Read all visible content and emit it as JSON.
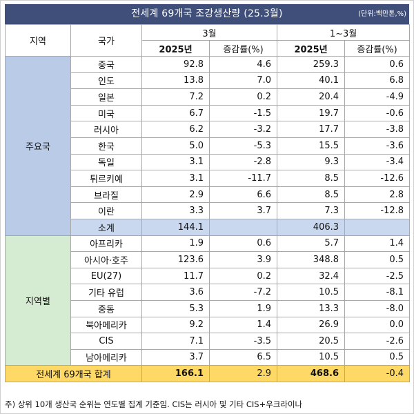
{
  "title": "전세계 69개국 조강생산량  (25.3월)",
  "unit": "(단위:백만톤,%)",
  "headers": {
    "region": "지역",
    "country": "국가",
    "group1": "3월",
    "group2": "1~3월",
    "year": "2025년",
    "change": "증감률(%)"
  },
  "groups": [
    {
      "label": "주요국",
      "rows": [
        {
          "name": "중국",
          "mar": "92.8",
          "mar_pct": "4.6",
          "q1": "259.3",
          "q1_pct": "0.6"
        },
        {
          "name": "인도",
          "mar": "13.8",
          "mar_pct": "7.0",
          "q1": "40.1",
          "q1_pct": "6.8"
        },
        {
          "name": "일본",
          "mar": "7.2",
          "mar_pct": "0.2",
          "q1": "20.4",
          "q1_pct": "-4.9"
        },
        {
          "name": "미국",
          "mar": "6.7",
          "mar_pct": "-1.5",
          "q1": "19.7",
          "q1_pct": "-0.6"
        },
        {
          "name": "러시아",
          "mar": "6.2",
          "mar_pct": "-3.2",
          "q1": "17.7",
          "q1_pct": "-3.8"
        },
        {
          "name": "한국",
          "mar": "5.0",
          "mar_pct": "-5.3",
          "q1": "15.5",
          "q1_pct": "-3.6"
        },
        {
          "name": "독일",
          "mar": "3.1",
          "mar_pct": "-2.8",
          "q1": "9.3",
          "q1_pct": "-3.4"
        },
        {
          "name": "튀르키예",
          "mar": "3.1",
          "mar_pct": "-11.7",
          "q1": "8.5",
          "q1_pct": "-12.6"
        },
        {
          "name": "브라질",
          "mar": "2.9",
          "mar_pct": "6.6",
          "q1": "8.5",
          "q1_pct": "2.8"
        },
        {
          "name": "이란",
          "mar": "3.3",
          "mar_pct": "3.7",
          "q1": "7.3",
          "q1_pct": "-12.8"
        }
      ],
      "subtotal": {
        "name": "소계",
        "mar": "144.1",
        "mar_pct": "",
        "q1": "406.3",
        "q1_pct": ""
      }
    },
    {
      "label": "지역별",
      "rows": [
        {
          "name": "아프리카",
          "mar": "1.9",
          "mar_pct": "0.6",
          "q1": "5.7",
          "q1_pct": "1.4"
        },
        {
          "name": "아시아·호주",
          "mar": "123.6",
          "mar_pct": "3.9",
          "q1": "348.8",
          "q1_pct": "0.5"
        },
        {
          "name": "EU(27)",
          "mar": "11.7",
          "mar_pct": "0.2",
          "q1": "32.4",
          "q1_pct": "-2.5"
        },
        {
          "name": "기타 유럽",
          "mar": "3.6",
          "mar_pct": "-7.2",
          "q1": "10.5",
          "q1_pct": "-8.1"
        },
        {
          "name": "중동",
          "mar": "5.3",
          "mar_pct": "1.9",
          "q1": "13.3",
          "q1_pct": "-8.0"
        },
        {
          "name": "북아메리카",
          "mar": "9.2",
          "mar_pct": "1.4",
          "q1": "26.9",
          "q1_pct": "0.0"
        },
        {
          "name": "CIS",
          "mar": "7.1",
          "mar_pct": "-3.5",
          "q1": "20.5",
          "q1_pct": "-2.6"
        },
        {
          "name": "남아메리카",
          "mar": "3.7",
          "mar_pct": "6.5",
          "q1": "10.5",
          "q1_pct": "0.5"
        }
      ]
    }
  ],
  "total": {
    "name": "전세계 69개국 합계",
    "mar": "166.1",
    "mar_pct": "2.9",
    "q1": "468.6",
    "q1_pct": "-0.4"
  },
  "footnote": "주) 상위 10개 생산국 순위는 연도별 집계 기준임. CIS는 러시아 및 기타 CIS+우크라이나",
  "colors": {
    "title_bg": "#3f4f7a",
    "major_region_bg": "#b9cbe6",
    "area_region_bg": "#d6ecd2",
    "subtotal_bg": "#c9d8ef",
    "total_bg": "#ffd966"
  }
}
